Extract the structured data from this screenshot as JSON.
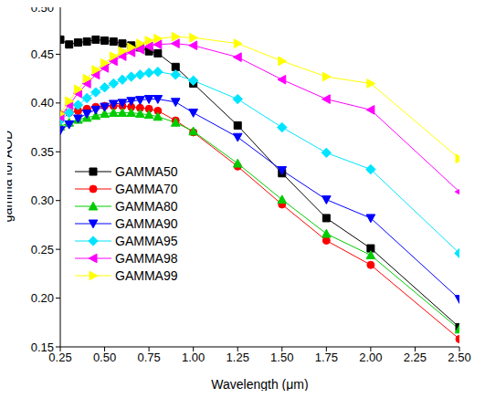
{
  "chart_data": {
    "type": "line",
    "x_label": "Wavelength (μm)",
    "y_label": "gamma for AOD",
    "x": [
      0.25,
      0.3,
      0.35,
      0.4,
      0.45,
      0.5,
      0.55,
      0.6,
      0.65,
      0.7,
      0.75,
      0.8,
      0.9,
      1.0,
      1.25,
      1.5,
      1.75,
      2.0,
      2.5
    ],
    "xlim": [
      0.25,
      2.5
    ],
    "xticks": [
      0.25,
      {
        "value": 0.5,
        "label": "0.50"
      },
      0.75,
      {
        "value": 1,
        "label": "1.00"
      },
      1.25,
      {
        "value": 1.5,
        "label": "1.50"
      },
      1.75,
      {
        "value": 2,
        "label": "2.00"
      },
      2.25,
      {
        "value": 2.5,
        "label": "2.50"
      }
    ],
    "ylim": [
      0.15,
      0.5
    ],
    "yticks": [
      0.15,
      {
        "value": 0.2,
        "label": "0.20"
      },
      0.25,
      {
        "value": 0.3,
        "label": "0.30"
      },
      0.35,
      {
        "value": 0.4,
        "label": "0.40"
      },
      0.45,
      {
        "value": 0.5,
        "label": "0.50"
      }
    ],
    "legend": "middle left",
    "series": [
      {
        "name": "GAMMA50",
        "color": "#000000",
        "marker": "square",
        "values": [
          0.465,
          0.46,
          0.462,
          0.463,
          0.465,
          0.464,
          0.463,
          0.461,
          0.459,
          0.457,
          0.453,
          0.451,
          0.437,
          0.42,
          0.377,
          0.328,
          0.282,
          0.251,
          0.17
        ]
      },
      {
        "name": "GAMMA70",
        "color": "#ff0000",
        "marker": "circle",
        "values": [
          0.388,
          0.39,
          0.392,
          0.394,
          0.396,
          0.397,
          0.397,
          0.397,
          0.396,
          0.395,
          0.394,
          0.392,
          0.382,
          0.37,
          0.335,
          0.296,
          0.259,
          0.234,
          0.158
        ]
      },
      {
        "name": "GAMMA80",
        "color": "#00cc00",
        "marker": "triangle",
        "values": [
          0.376,
          0.38,
          0.383,
          0.385,
          0.387,
          0.389,
          0.39,
          0.39,
          0.39,
          0.389,
          0.388,
          0.386,
          0.38,
          0.371,
          0.338,
          0.301,
          0.266,
          0.244,
          0.168
        ]
      },
      {
        "name": "GAMMA90",
        "color": "#0000ff",
        "marker": "triangle-down",
        "values": [
          0.372,
          0.378,
          0.384,
          0.389,
          0.393,
          0.396,
          0.399,
          0.4,
          0.402,
          0.403,
          0.404,
          0.404,
          0.401,
          0.39,
          0.365,
          0.331,
          0.301,
          0.282,
          0.199
        ]
      },
      {
        "name": "GAMMA95",
        "color": "#00e5ff",
        "marker": "diamond",
        "values": [
          0.382,
          0.39,
          0.398,
          0.405,
          0.411,
          0.416,
          0.42,
          0.424,
          0.427,
          0.429,
          0.431,
          0.432,
          0.429,
          0.423,
          0.404,
          0.375,
          0.349,
          0.332,
          0.246
        ]
      },
      {
        "name": "GAMMA98",
        "color": "#ff00ff",
        "marker": "triangle-left",
        "values": [
          0.386,
          0.398,
          0.41,
          0.42,
          0.429,
          0.436,
          0.443,
          0.448,
          0.452,
          0.455,
          0.458,
          0.46,
          0.461,
          0.459,
          0.447,
          0.424,
          0.404,
          0.393,
          0.309
        ]
      },
      {
        "name": "GAMMA99",
        "color": "#ffff00",
        "marker": "triangle-right",
        "values": [
          0.389,
          0.402,
          0.414,
          0.425,
          0.434,
          0.441,
          0.448,
          0.453,
          0.457,
          0.461,
          0.464,
          0.466,
          0.468,
          0.467,
          0.461,
          0.443,
          0.427,
          0.42,
          0.343
        ]
      }
    ]
  }
}
